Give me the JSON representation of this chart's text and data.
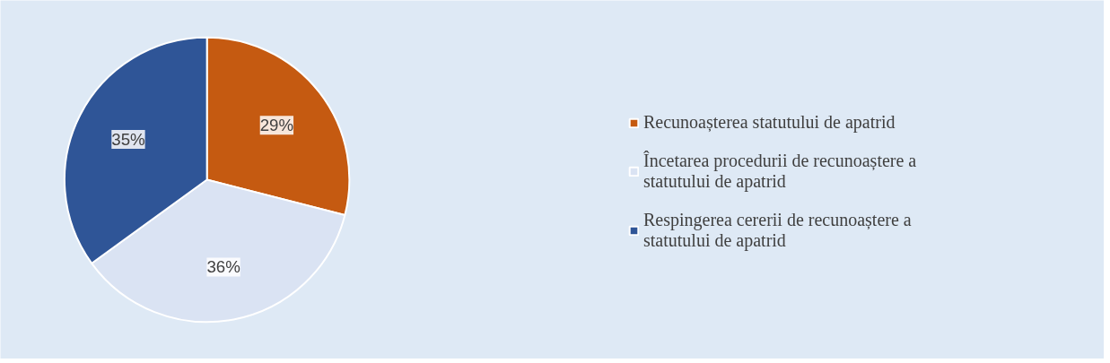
{
  "chart_data": {
    "type": "pie",
    "categories": [
      "Recunoașterea statutului de apatrid",
      "Încetarea procedurii de recunoaștere a statutului de apatrid",
      "Respingerea cererii de recunoaștere a statutului de apatrid"
    ],
    "values": [
      29,
      36,
      35
    ],
    "colors": [
      "#c55a11",
      "#dae3f3",
      "#2f5597"
    ],
    "value_labels": [
      "29%",
      "36%",
      "35%"
    ],
    "legend": "right"
  }
}
